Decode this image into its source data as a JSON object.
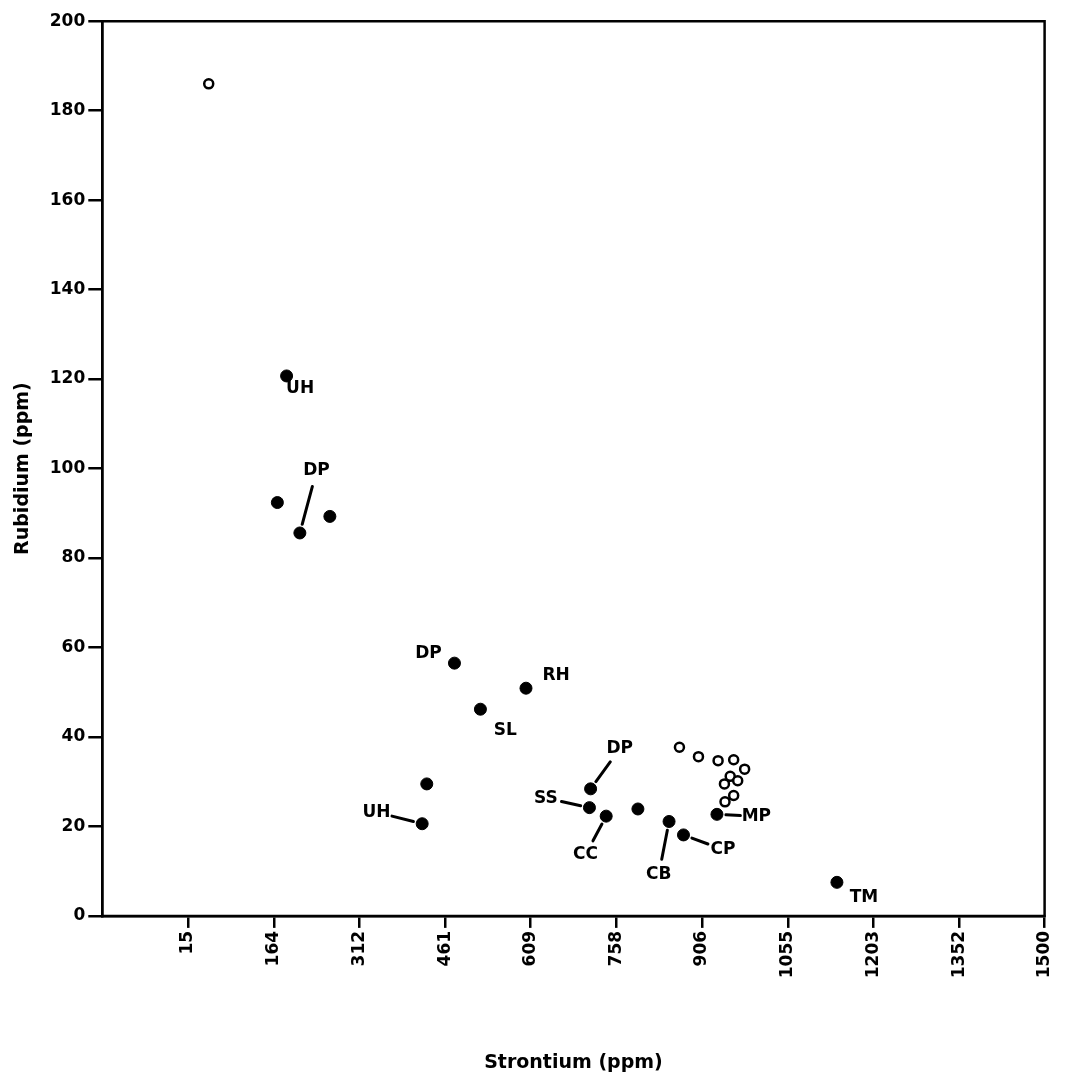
{
  "chart_data": {
    "type": "scatter",
    "xlabel": "Strontium (ppm)",
    "ylabel": "Rubidium (ppm)",
    "xlim": [
      -133.5,
      1500
    ],
    "xticks": [
      15,
      164,
      312,
      461,
      609,
      758,
      906,
      1055,
      1203,
      1352,
      1500
    ],
    "ylim": [
      0,
      200
    ],
    "yticks": [
      0,
      20,
      40,
      60,
      80,
      100,
      120,
      140,
      160,
      180,
      200
    ],
    "grid": false,
    "legend": false,
    "marker": "circle",
    "series": [
      {
        "color": "#000000",
        "x": [
          51,
          867,
          900,
          934,
          961,
          980,
          955,
          968,
          945,
          961,
          946
        ],
        "values": [
          186,
          37.7,
          35.6,
          34.7,
          34.9,
          32.8,
          31.2,
          30.2,
          29.5,
          26.9,
          25.5
        ]
      },
      {
        "color": "#000000",
        "x": [
          186,
          170,
          209,
          261,
          477,
          522,
          601,
          429,
          421,
          713,
          711,
          740,
          795,
          849,
          874,
          932,
          1140
        ],
        "values": [
          120.7,
          92.4,
          85.6,
          89.3,
          56.5,
          46.2,
          50.9,
          29.5,
          20.6,
          28.4,
          24.2,
          22.3,
          23.9,
          21.1,
          18.1,
          22.7,
          7.5
        ]
      }
    ],
    "annotations": [
      {
        "text": "UH",
        "x": 186,
        "y": 120.7
      },
      {
        "text": "DP",
        "x": 209,
        "y": 85.6
      },
      {
        "text": "DP",
        "x": 477,
        "y": 56.5
      },
      {
        "text": "RH",
        "x": 601,
        "y": 50.9
      },
      {
        "text": "SL",
        "x": 522,
        "y": 46.2
      },
      {
        "text": "DP",
        "x": 713,
        "y": 28.4
      },
      {
        "text": "UH",
        "x": 421,
        "y": 20.6
      },
      {
        "text": "SS",
        "x": 711,
        "y": 24.2
      },
      {
        "text": "CC",
        "x": 740,
        "y": 22.3
      },
      {
        "text": "CB",
        "x": 849,
        "y": 21.1
      },
      {
        "text": "CP",
        "x": 874,
        "y": 18.1
      },
      {
        "text": "MP",
        "x": 932,
        "y": 22.7
      },
      {
        "text": "TM",
        "x": 1140,
        "y": 7.5
      }
    ]
  }
}
